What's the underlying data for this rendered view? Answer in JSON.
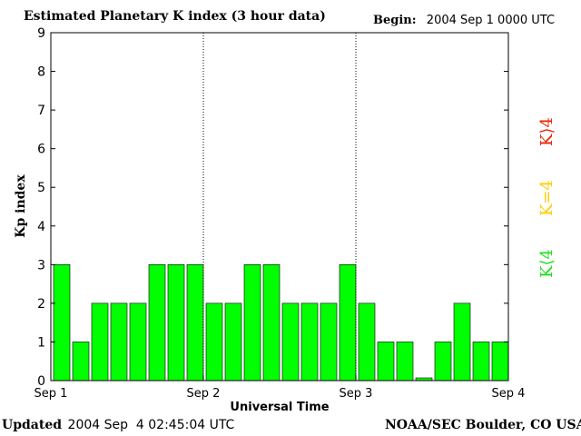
{
  "header": {
    "title": "Estimated Planetary K index (3 hour data)",
    "begin_label": "Begin:",
    "begin_value": "2004 Sep 1 0000 UTC"
  },
  "footer": {
    "updated_label": "Updated",
    "updated_value": "2004 Sep  4 02:45:04 UTC",
    "source": "NOAA/SEC Boulder, CO USA"
  },
  "legend": [
    {
      "label": "K<4",
      "display": "K⟨4",
      "color": "#22dd22"
    },
    {
      "label": "K=4",
      "display": "K=4",
      "color": "#ffcc00"
    },
    {
      "label": "K>4",
      "display": "K⟩4",
      "color": "#ee2200"
    }
  ],
  "colors": {
    "bar": "#00ff00",
    "axis": "#000000",
    "separator": "#000000"
  },
  "chart_data": {
    "type": "bar",
    "title": "Estimated Planetary K index (3 hour data)",
    "xlabel": "Universal Time",
    "ylabel": "Kp index",
    "ylim": [
      0,
      9
    ],
    "yticks": [
      "0",
      "1",
      "2",
      "3",
      "4",
      "5",
      "6",
      "7",
      "8",
      "9"
    ],
    "xticks": [
      "Sep 1",
      "Sep 2",
      "Sep 3",
      "Sep 4"
    ],
    "bins_per_day": 8,
    "days": 3,
    "values": [
      3,
      1,
      2,
      2,
      2,
      3,
      3,
      3,
      2,
      2,
      3,
      3,
      2,
      2,
      2,
      3,
      2,
      1,
      1,
      0.07,
      1,
      2,
      1,
      1
    ],
    "grid": false,
    "day_separators": true,
    "legend_position": "right"
  }
}
